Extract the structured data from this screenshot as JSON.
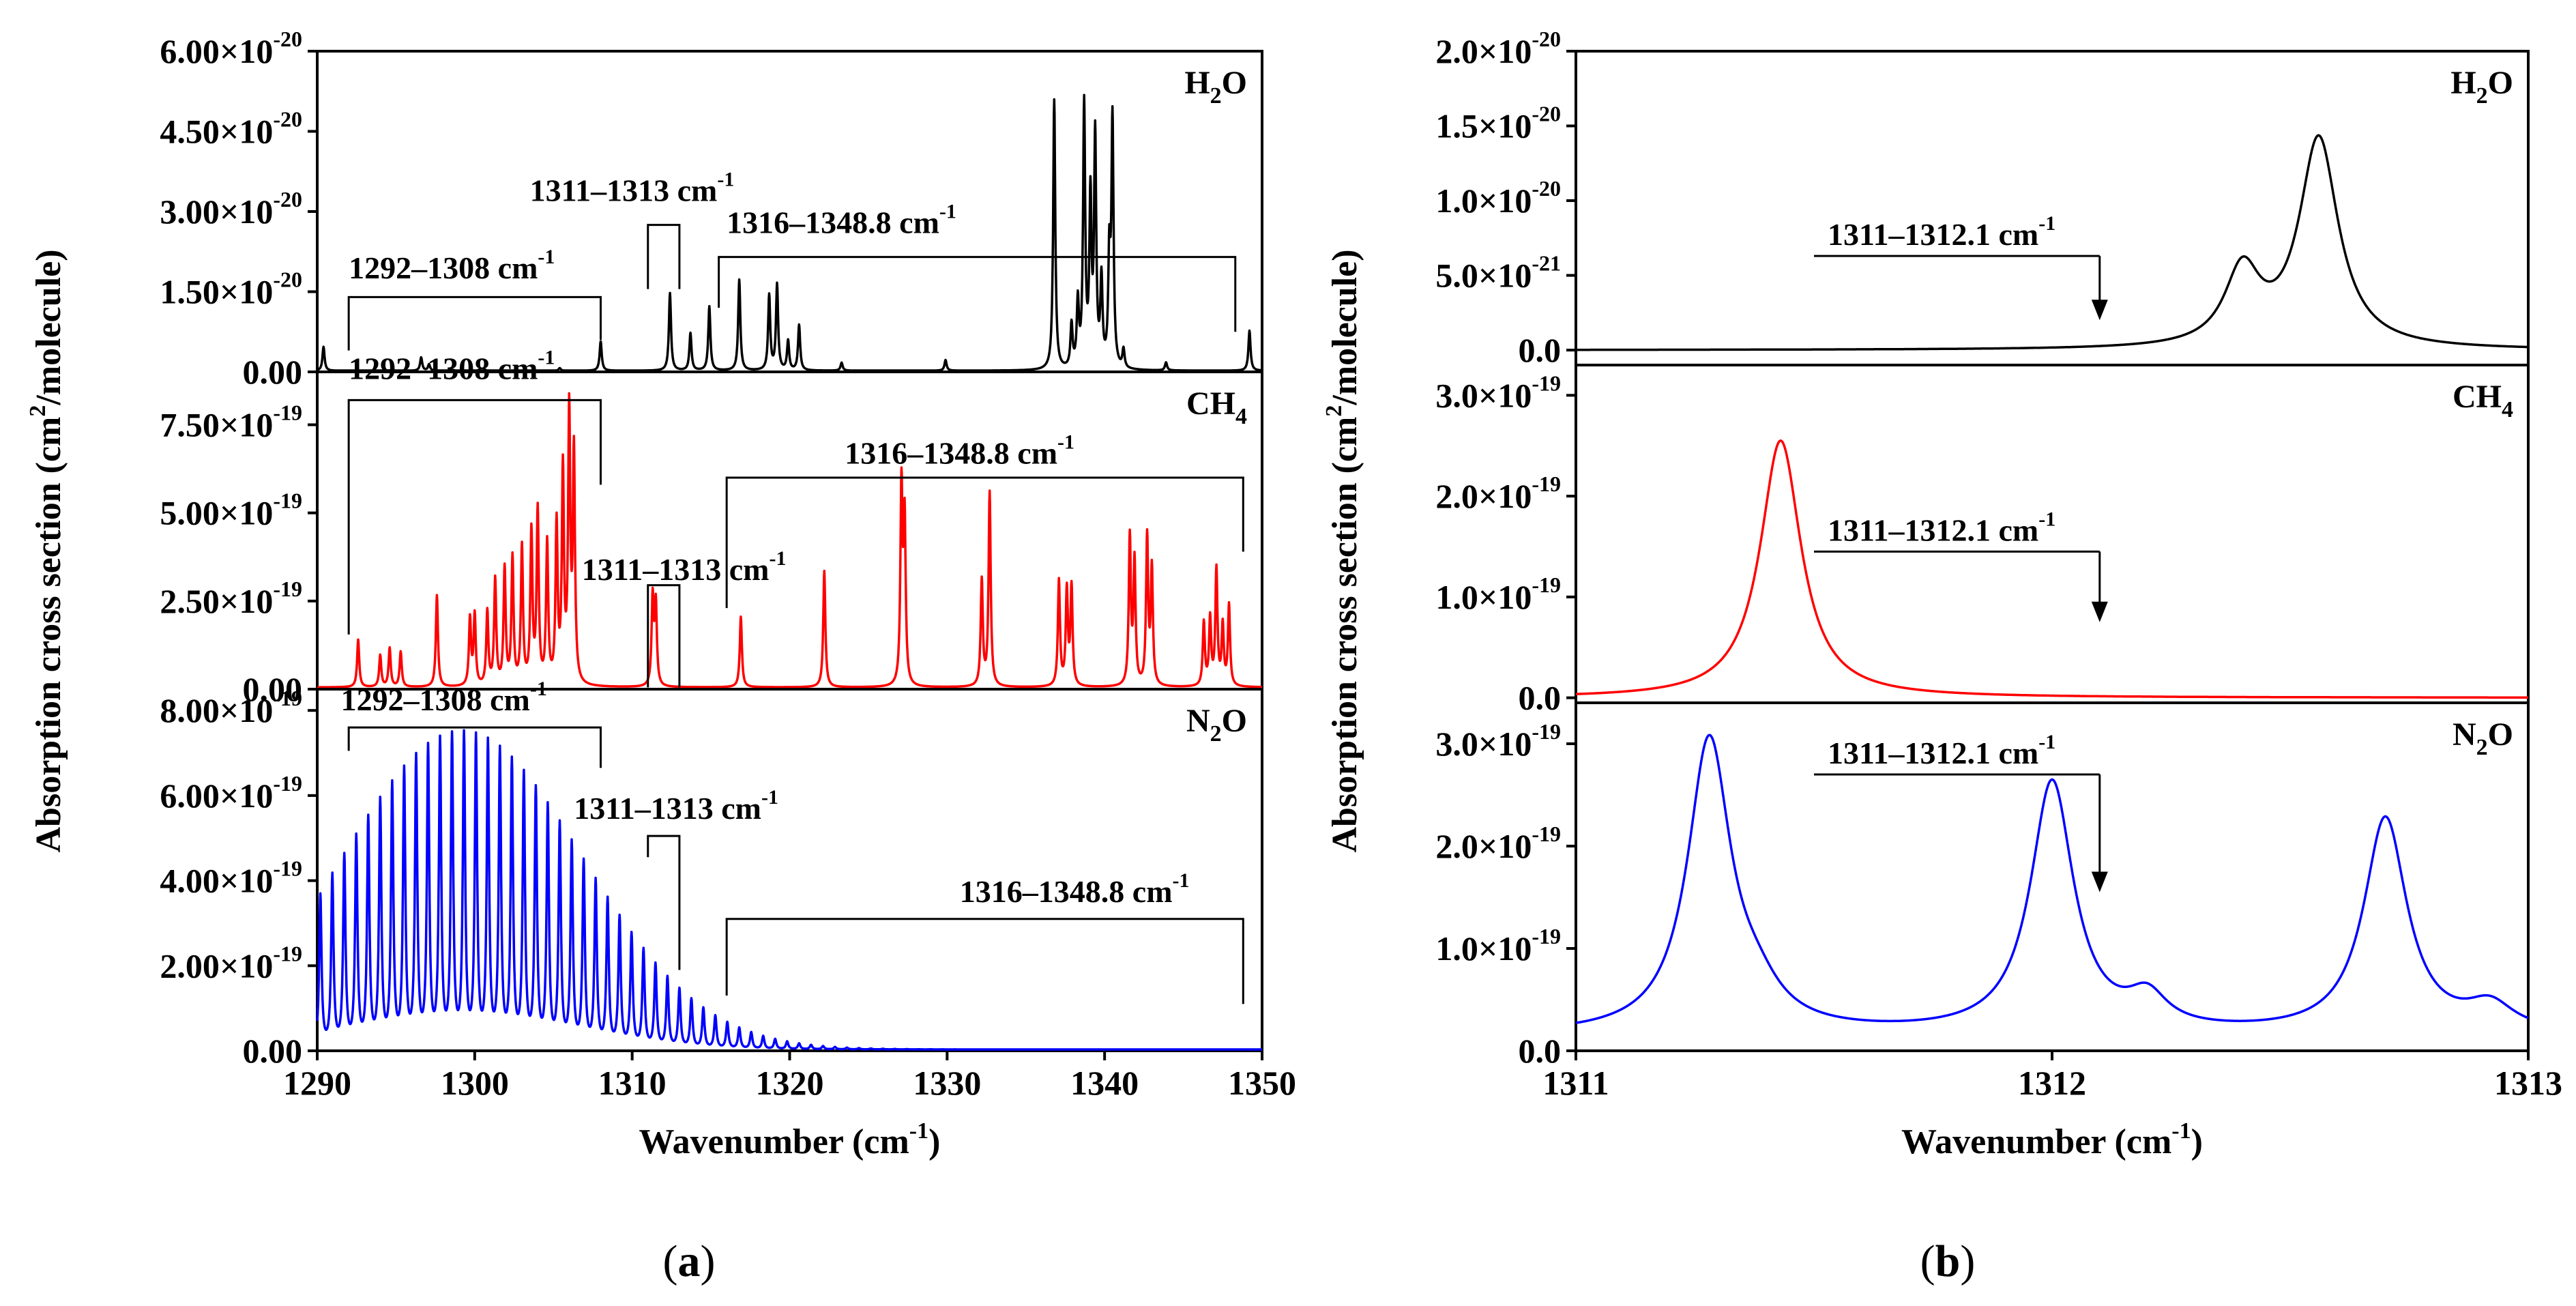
{
  "panel_labels": [
    {
      "open": "(",
      "letter": "a",
      "close": ")"
    },
    {
      "open": "(",
      "letter": "b",
      "close": ")"
    }
  ],
  "chart_data": [
    {
      "id": "a",
      "type": "line",
      "xlabel": "Wavenumber (cm",
      "xlabel_sup": "-1",
      "xlabel_end": ")",
      "ylabel": "Absorption cross section (cm",
      "ylabel_sup": "2",
      "ylabel_end": "/molecule)",
      "xlim": [
        1290,
        1350
      ],
      "xticks": [
        1290,
        1300,
        1310,
        1320,
        1330,
        1340,
        1350
      ],
      "subplots": [
        {
          "species": "H₂O",
          "color": "#000000",
          "ylim": [
            0,
            6e-20
          ],
          "yticks": [
            {
              "value": 0,
              "mant": "0.00",
              "exp": ""
            },
            {
              "value": 1.5e-20,
              "mant": "1.50×10",
              "exp": "-20"
            },
            {
              "value": 3e-20,
              "mant": "3.00×10",
              "exp": "-20"
            },
            {
              "value": 4.5e-20,
              "mant": "4.50×10",
              "exp": "-20"
            },
            {
              "value": 6e-20,
              "mant": "6.00×10",
              "exp": "-20"
            }
          ],
          "baseline": 2e-22,
          "peaks": [
            [
              1290.4,
              4.5e-21
            ],
            [
              1296.6,
              2.5e-21
            ],
            [
              1297.1,
              1.2e-21
            ],
            [
              1305.4,
              5e-22
            ],
            [
              1308.0,
              5.5e-21
            ],
            [
              1312.4,
              1.45e-20
            ],
            [
              1313.7,
              7e-21
            ],
            [
              1314.9,
              1.2e-20
            ],
            [
              1316.8,
              1.7e-20
            ],
            [
              1318.7,
              1.4e-20
            ],
            [
              1319.2,
              1.6e-20
            ],
            [
              1319.9,
              5.5e-21
            ],
            [
              1320.6,
              8.5e-21
            ],
            [
              1323.3,
              1.5e-21
            ],
            [
              1329.9,
              2e-21
            ],
            [
              1336.8,
              5.05e-20
            ],
            [
              1337.9,
              8e-21
            ],
            [
              1338.3,
              1.2e-20
            ],
            [
              1338.7,
              4.9e-20
            ],
            [
              1339.1,
              3.1e-20
            ],
            [
              1339.4,
              4.3e-20
            ],
            [
              1339.8,
              1.6e-20
            ],
            [
              1340.3,
              2e-20
            ],
            [
              1340.5,
              4.6e-20
            ],
            [
              1341.2,
              3.5e-21
            ],
            [
              1343.9,
              1.5e-21
            ],
            [
              1349.2,
              7.5e-21
            ]
          ],
          "hw": 0.08,
          "brackets": [
            {
              "label": "1292–1308 cm",
              "sup": "-1",
              "x1": 1292,
              "x2": 1308,
              "top": 1.4e-20,
              "bot1": 4e-21,
              "bot2": 6e-21,
              "labx": 1292,
              "laby": 1.75e-20
            },
            {
              "label": "1311–1313 cm",
              "sup": "-1",
              "x1": 1311,
              "x2": 1313,
              "top": 2.75e-20,
              "bot1": 1.55e-20,
              "bot2": 1.55e-20,
              "labx": 1303.5,
              "laby": 3.2e-20
            },
            {
              "label": "1316–1348.8 cm",
              "sup": "-1",
              "x1": 1315.5,
              "x2": 1348.3,
              "top": 2.15e-20,
              "bot1": 1.2e-20,
              "bot2": 7.5e-21,
              "labx": 1316,
              "laby": 2.6e-20
            }
          ]
        },
        {
          "species": "CH₄",
          "color": "#ff0000",
          "ylim": [
            0,
            9e-19
          ],
          "yticks": [
            {
              "value": 0,
              "mant": "0.00",
              "exp": ""
            },
            {
              "value": 2.5e-19,
              "mant": "2.50×10",
              "exp": "-19"
            },
            {
              "value": 5e-19,
              "mant": "5.00×10",
              "exp": "-19"
            },
            {
              "value": 7.5e-19,
              "mant": "7.50×10",
              "exp": "-19"
            }
          ],
          "baseline": 5e-21,
          "peaks": [
            [
              1292.6,
              1.35e-19
            ],
            [
              1294.0,
              9e-20
            ],
            [
              1294.6,
              1.1e-19
            ],
            [
              1295.3,
              1e-19
            ],
            [
              1297.6,
              2.6e-19
            ],
            [
              1299.7,
              1.9e-19
            ],
            [
              1300.0,
              2e-19
            ],
            [
              1300.8,
              2.1e-19
            ],
            [
              1301.3,
              3e-19
            ],
            [
              1301.9,
              3.3e-19
            ],
            [
              1302.4,
              3.6e-19
            ],
            [
              1303.0,
              3.9e-19
            ],
            [
              1303.6,
              4.3e-19
            ],
            [
              1304.0,
              4.9e-19
            ],
            [
              1304.6,
              4e-19
            ],
            [
              1305.2,
              4.5e-19
            ],
            [
              1305.6,
              6e-19
            ],
            [
              1306.0,
              7.6e-19
            ],
            [
              1306.3,
              6.5e-19
            ],
            [
              1311.3,
              2.5e-19
            ],
            [
              1311.5,
              2.3e-19
            ],
            [
              1316.9,
              2e-19
            ],
            [
              1322.2,
              3.3e-19
            ],
            [
              1327.1,
              5.6e-19
            ],
            [
              1327.3,
              4.6e-19
            ],
            [
              1332.2,
              3e-19
            ],
            [
              1332.7,
              5.5e-19
            ],
            [
              1337.1,
              3e-19
            ],
            [
              1337.6,
              2.7e-19
            ],
            [
              1337.9,
              2.8e-19
            ],
            [
              1341.6,
              4.2e-19
            ],
            [
              1341.9,
              3.5e-19
            ],
            [
              1342.7,
              4.2e-19
            ],
            [
              1343.0,
              3.3e-19
            ],
            [
              1346.3,
              1.8e-19
            ],
            [
              1346.7,
              1.9e-19
            ],
            [
              1347.1,
              3.3e-19
            ],
            [
              1347.5,
              1.7e-19
            ],
            [
              1347.9,
              2.3e-19
            ]
          ],
          "hw": 0.08,
          "brackets": [
            {
              "label": "1292–1308 cm",
              "sup": "-1",
              "x1": 1292,
              "x2": 1308,
              "top": 8.2e-19,
              "bot1": 1.55e-19,
              "bot2": 5.8e-19,
              "labx": 1292,
              "laby": 8.8e-19
            },
            {
              "label": "1316–1348.8 cm",
              "sup": "-1",
              "x1": 1316,
              "x2": 1348.8,
              "top": 6e-19,
              "bot1": 2.3e-19,
              "bot2": 3.9e-19,
              "labx": 1323.5,
              "laby": 6.4e-19
            },
            {
              "label": "1311–1313 cm",
              "sup": "-1",
              "x1": 1311,
              "x2": 1313,
              "top": 2.95e-19,
              "bot1": 5e-21,
              "bot2": 5e-21,
              "labx": 1306.8,
              "laby": 3.1e-19
            }
          ]
        },
        {
          "species": "N₂O",
          "color": "#0000ff",
          "ylim": [
            0,
            8.5e-19
          ],
          "yticks": [
            {
              "value": 0,
              "mant": "0.00",
              "exp": ""
            },
            {
              "value": 2e-19,
              "mant": "2.00×10",
              "exp": "-19"
            },
            {
              "value": 4e-19,
              "mant": "4.00×10",
              "exp": "-19"
            },
            {
              "value": 6e-19,
              "mant": "6.00×10",
              "exp": "-19"
            },
            {
              "value": 8e-19,
              "mant": "8.00×10",
              "exp": "-19"
            }
          ],
          "baseline": 3e-21,
          "comb": {
            "start": 1290.2,
            "spacing": 0.76,
            "end": 1349.5,
            "center": 1299.2,
            "sigma": 7.6,
            "peak": 7.2e-19,
            "min": 5.5e-20,
            "hw": 0.09
          },
          "brackets": [
            {
              "label": "1292–1308 cm",
              "sup": "-1",
              "x1": 1292,
              "x2": 1308,
              "top": 7.6e-19,
              "bot1": 7.05e-19,
              "bot2": 6.65e-19,
              "labx": 1291.5,
              "laby": 8e-19
            },
            {
              "label": "1311–1313 cm",
              "sup": "-1",
              "x1": 1311,
              "x2": 1313,
              "top": 5.05e-19,
              "bot1": 4.55e-19,
              "bot2": 1.9e-19,
              "labx": 1306.3,
              "laby": 5.45e-19
            },
            {
              "label": "1316–1348.8 cm",
              "sup": "-1",
              "x1": 1316,
              "x2": 1348.8,
              "top": 3.1e-19,
              "bot1": 1.3e-19,
              "bot2": 1.1e-19,
              "labx": 1330.8,
              "laby": 3.5e-19
            }
          ]
        }
      ]
    },
    {
      "id": "b",
      "type": "line",
      "xlabel": "Wavenumber (cm",
      "xlabel_sup": "-1",
      "xlabel_end": ")",
      "ylabel": "Absorption cross section (cm",
      "ylabel_sup": "2",
      "ylabel_end": "/molecule)",
      "xlim": [
        1311,
        1313
      ],
      "xticks": [
        1311,
        1312,
        1313
      ],
      "window": {
        "label": "1311–1312.1 cm",
        "sup": "-1",
        "start": 1311.5,
        "end": 1312.1
      },
      "subplots": [
        {
          "species": "H₂O",
          "color": "#000000",
          "ylim": [
            -1e-21,
            2e-20
          ],
          "yticks": [
            {
              "value": 0,
              "mant": "0.0",
              "exp": ""
            },
            {
              "value": 5e-21,
              "mant": "5.0×10",
              "exp": "-21"
            },
            {
              "value": 1e-20,
              "mant": "1.0×10",
              "exp": "-20"
            },
            {
              "value": 1.5e-20,
              "mant": "1.5×10",
              "exp": "-20"
            },
            {
              "value": 2e-20,
              "mant": "2.0×10",
              "exp": "-20"
            }
          ],
          "baseline": 0,
          "peaks": [
            [
              1312.4,
              5e-21,
              0.045
            ],
            [
              1312.56,
              1.4e-20,
              0.05
            ]
          ],
          "arrow": {
            "y_line": 6.3e-21,
            "y_tip": 2e-21
          }
        },
        {
          "species": "CH₄",
          "color": "#ff0000",
          "ylim": [
            -5e-21,
            3.3e-19
          ],
          "yticks": [
            {
              "value": 0,
              "mant": "0.0",
              "exp": ""
            },
            {
              "value": 1e-19,
              "mant": "1.0×10",
              "exp": "-19"
            },
            {
              "value": 2e-19,
              "mant": "2.0×10",
              "exp": "-19"
            },
            {
              "value": 3e-19,
              "mant": "3.0×10",
              "exp": "-19"
            }
          ],
          "baseline": 0,
          "peaks": [
            [
              1311.43,
              2.55e-19,
              0.052
            ]
          ],
          "arrow": {
            "y_line": 1.45e-19,
            "y_tip": 7.5e-20
          }
        },
        {
          "species": "N₂O",
          "color": "#0000ff",
          "ylim": [
            0,
            3.4e-19
          ],
          "yticks": [
            {
              "value": 0,
              "mant": "0.0",
              "exp": ""
            },
            {
              "value": 1e-19,
              "mant": "1.0×10",
              "exp": "-19"
            },
            {
              "value": 2e-19,
              "mant": "2.0×10",
              "exp": "-19"
            },
            {
              "value": 3e-19,
              "mant": "3.0×10",
              "exp": "-19"
            }
          ],
          "baseline": 1.5e-20,
          "peaks": [
            [
              1311.28,
              2.85e-19,
              0.055
            ],
            [
              1311.38,
              2.5e-20,
              0.06
            ],
            [
              1312.0,
              2.45e-19,
              0.055
            ],
            [
              1312.2,
              3e-20,
              0.05
            ],
            [
              1312.7,
              2.1e-19,
              0.055
            ],
            [
              1312.92,
              2.5e-20,
              0.06
            ]
          ],
          "arrow": {
            "y_line": 2.7e-19,
            "y_tip": 1.55e-19
          }
        }
      ]
    }
  ]
}
